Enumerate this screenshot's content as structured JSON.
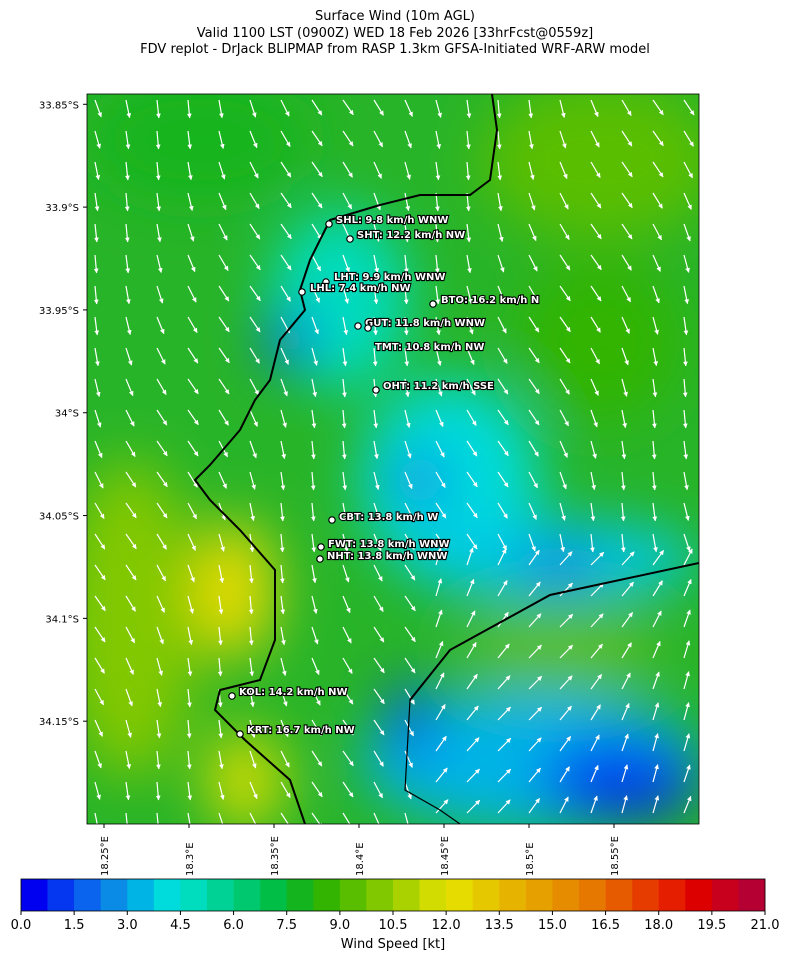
{
  "title": [
    "Surface Wind (10m AGL)",
    "Valid 1100 LST (0900Z) WED 18 Feb 2026 [33hrFcst@0559z]",
    "FDV replot - DrJack BLIPMAP from RASP 1.3km GFSA-Initiated WRF-ARW model"
  ],
  "map": {
    "xlim": [
      18.24,
      18.6
    ],
    "ylim": [
      -34.2,
      -33.845
    ],
    "xticks": [
      {
        "value": 18.25,
        "label": "18.25°E"
      },
      {
        "value": 18.3,
        "label": "18.3°E"
      },
      {
        "value": 18.35,
        "label": "18.35°E"
      },
      {
        "value": 18.4,
        "label": "18.4°E"
      },
      {
        "value": 18.45,
        "label": "18.45°E"
      },
      {
        "value": 18.5,
        "label": "18.5°E"
      },
      {
        "value": 18.55,
        "label": "18.55°E"
      }
    ],
    "yticks": [
      {
        "value": -33.85,
        "label": "33.85°S"
      },
      {
        "value": -33.9,
        "label": "33.9°S"
      },
      {
        "value": -33.95,
        "label": "33.95°S"
      },
      {
        "value": -34,
        "label": "34°S"
      },
      {
        "value": -34.05,
        "label": "34.05°S"
      },
      {
        "value": -34.1,
        "label": "34.1°S"
      },
      {
        "value": -34.15,
        "label": "34.15°S"
      }
    ]
  },
  "stations": [
    "SHL: 9.8 km/h WNW",
    "SHT: 12.2 km/h NW",
    "LHT: 9.9 km/h WNW",
    "LHL: 7.4 km/h NW",
    "BTO: 16.2 km/h N",
    "GUT: 11.8 km/h WNW",
    "TMT: 10.8 km/h NW",
    "OHT: 11.2 km/h SSE",
    "CBT: 13.8 km/h W",
    "FWT: 13.8 km/h WNW",
    "NHT: 13.8 km/h WNW",
    "KOL: 14.2 km/h NW",
    "KRT: 16.7 km/h NW"
  ],
  "colorbar": {
    "label": "Wind Speed [kt]",
    "lim": [
      0,
      21
    ],
    "ticks": [
      {
        "value": 0,
        "label": "0.0"
      },
      1.5,
      {
        "value": 3,
        "label": "3.0"
      },
      4.5,
      {
        "value": 6,
        "label": "6.0"
      },
      7.5,
      {
        "value": 9,
        "label": "9.0"
      },
      10.5,
      {
        "value": 12,
        "label": "12.0"
      },
      13.5,
      {
        "value": 15,
        "label": "15.0"
      },
      16.5,
      {
        "value": 18,
        "label": "18.0"
      },
      19.5,
      {
        "value": 21,
        "label": "21.0"
      }
    ],
    "colors": [
      "#0000f0",
      "#0537f0",
      "#0a64ee",
      "#0a8ce6",
      "#00b4e6",
      "#00dcdc",
      "#00dcbe",
      "#00d296",
      "#00c86e",
      "#00be46",
      "#14b41e",
      "#32b400",
      "#5abe00",
      "#82c800",
      "#aad200",
      "#d2dc00",
      "#e6dc00",
      "#e6c800",
      "#e6b400",
      "#e6a000",
      "#e68c00",
      "#e67800",
      "#e65a00",
      "#e63c00",
      "#e61e00",
      "#dc0000",
      "#c8001e",
      "#b40032"
    ]
  }
}
